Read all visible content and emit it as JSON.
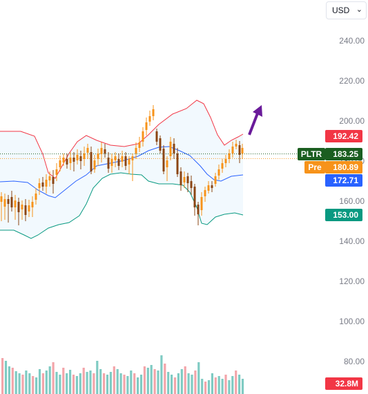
{
  "currency": {
    "value": "USD"
  },
  "icons": {
    "chevron": "chevron-down-icon",
    "trend": "trend-arrow-icon"
  },
  "price_axis": {
    "ticks": [
      "240.00",
      "220.00",
      "200.00",
      "180.00",
      "160.00",
      "140.00",
      "120.00",
      "100.00",
      "80.00"
    ]
  },
  "tags": {
    "upper_band": {
      "value": "192.42",
      "color": "#f23645"
    },
    "last_symbol": "PLTR",
    "last_price": {
      "value": "183.25",
      "color": "#1b5e20"
    },
    "premarket_label": "Pre",
    "premarket_price": {
      "value": "180.89",
      "color": "#f7931a"
    },
    "middle_band": {
      "value": "172.71",
      "color": "#2962ff"
    },
    "lower_band": {
      "value": "153.00",
      "color": "#089981"
    },
    "volume": {
      "value": "32.8M",
      "color": "#f23645"
    }
  },
  "chart_data": {
    "type": "candlestick",
    "symbol": "PLTR",
    "ylim": [
      80,
      250
    ],
    "last_price": 183.25,
    "premarket_price": 180.89,
    "bollinger": {
      "upper": 192.42,
      "middle": 172.71,
      "lower": 153.0
    },
    "volume_last": "32.8M",
    "colors": {
      "up": "#f7931a",
      "down": "#8b4513",
      "upper": "#f23645",
      "middle": "#2962ff",
      "lower": "#089981",
      "vol_up": "#7fcbc3",
      "vol_down": "#f3a5aa"
    }
  }
}
